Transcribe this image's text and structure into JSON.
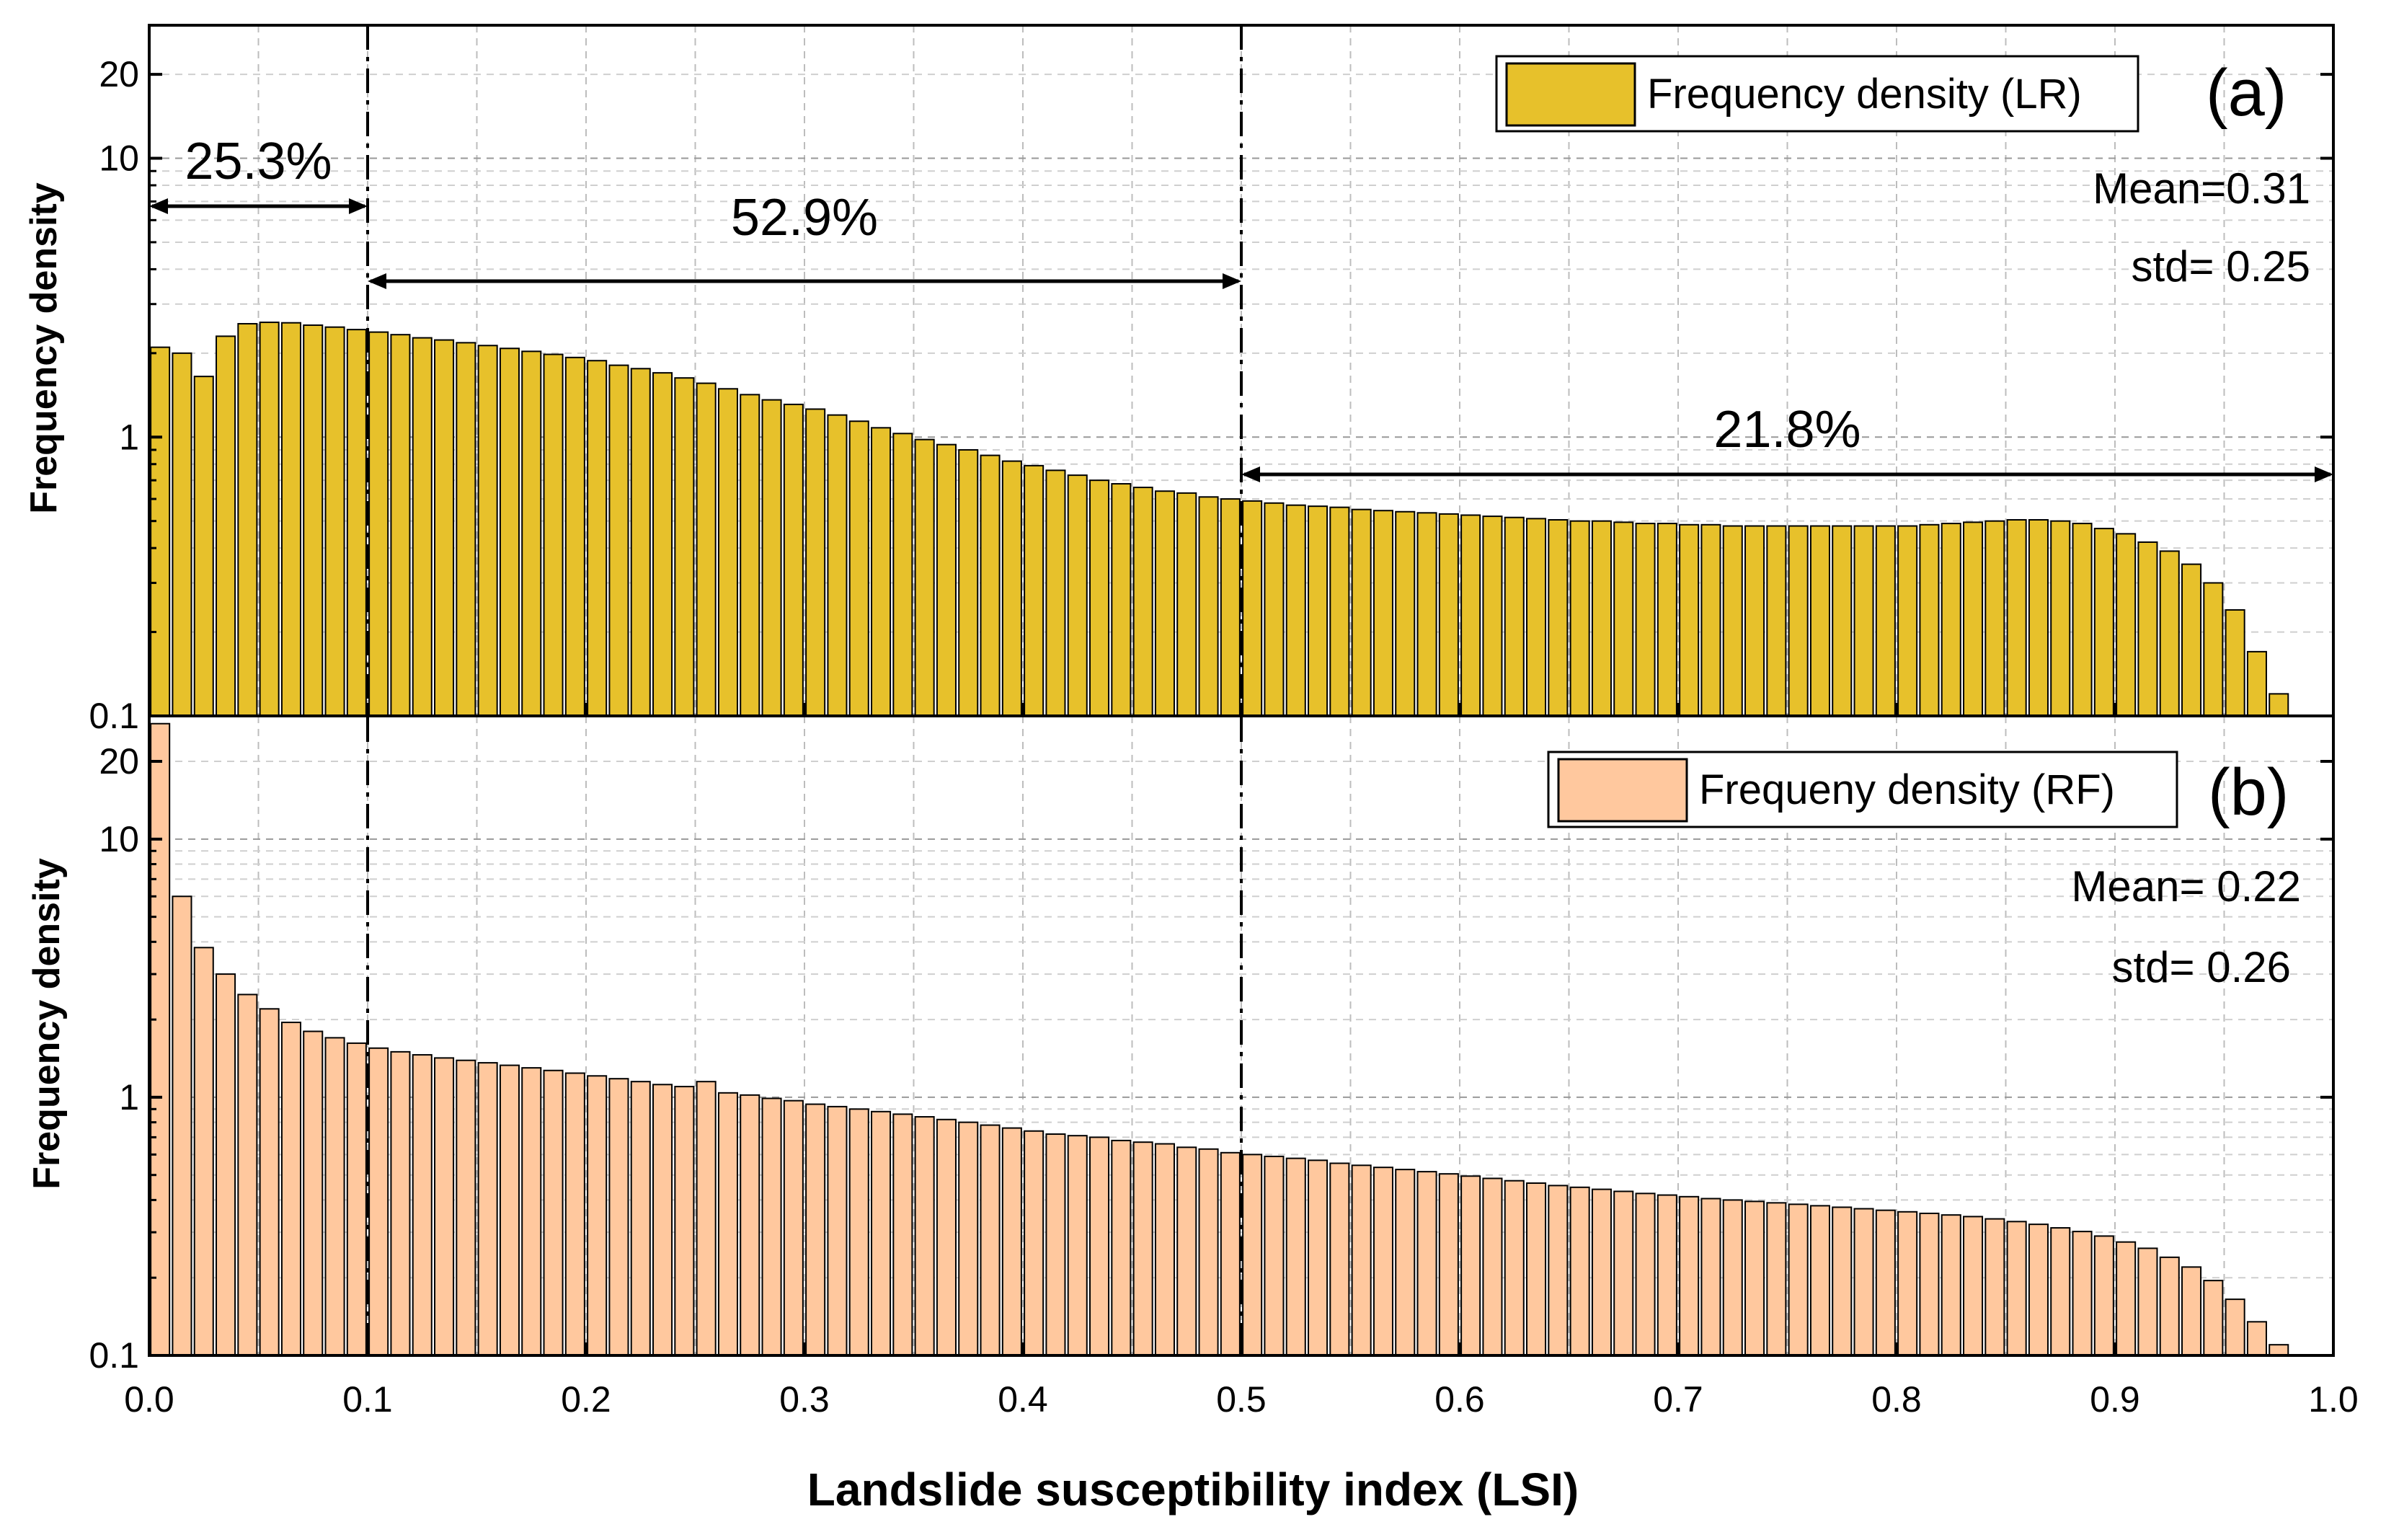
{
  "chart_data": {
    "type": "bar",
    "xlabel": "Landslide susceptibility index (LSI)",
    "xlim": [
      0.0,
      1.0
    ],
    "xticks": [
      "0.0",
      "0.1",
      "0.2",
      "0.3",
      "0.4",
      "0.5",
      "0.6",
      "0.7",
      "0.8",
      "0.9",
      "1.0"
    ],
    "yscale": "log",
    "grid": true,
    "dividers": [
      0.1,
      0.5
    ],
    "panels": [
      {
        "label": "(a)",
        "ylabel": "Frequency density",
        "ylim": [
          0.1,
          30
        ],
        "yticks": [
          "0.1",
          "1",
          "10",
          "20"
        ],
        "legend": "Frequency density (LR)",
        "legend_position": "top-right",
        "color": "#E7C12B",
        "mean_text": "Mean=0.31",
        "std_text": "std= 0.25",
        "bin_width": 0.01,
        "values": [
          2.1,
          2.0,
          1.65,
          2.3,
          2.55,
          2.58,
          2.57,
          2.52,
          2.48,
          2.43,
          2.38,
          2.33,
          2.27,
          2.23,
          2.18,
          2.13,
          2.08,
          2.03,
          1.98,
          1.93,
          1.88,
          1.81,
          1.76,
          1.7,
          1.63,
          1.56,
          1.49,
          1.42,
          1.36,
          1.31,
          1.26,
          1.2,
          1.14,
          1.08,
          1.03,
          0.98,
          0.94,
          0.9,
          0.86,
          0.82,
          0.79,
          0.76,
          0.73,
          0.7,
          0.68,
          0.66,
          0.64,
          0.63,
          0.61,
          0.6,
          0.59,
          0.58,
          0.57,
          0.565,
          0.56,
          0.55,
          0.545,
          0.54,
          0.535,
          0.53,
          0.525,
          0.52,
          0.515,
          0.51,
          0.505,
          0.5,
          0.5,
          0.495,
          0.49,
          0.49,
          0.485,
          0.485,
          0.48,
          0.48,
          0.48,
          0.48,
          0.48,
          0.48,
          0.48,
          0.48,
          0.48,
          0.485,
          0.49,
          0.495,
          0.5,
          0.505,
          0.505,
          0.5,
          0.49,
          0.47,
          0.45,
          0.42,
          0.39,
          0.35,
          0.3,
          0.24,
          0.17,
          0.12
        ],
        "annotations": [
          {
            "text": "25.3%",
            "from": 0.0,
            "to": 0.1
          },
          {
            "text": "52.9%",
            "from": 0.1,
            "to": 0.5
          },
          {
            "text": "21.8%",
            "from": 0.5,
            "to": 1.0
          }
        ]
      },
      {
        "label": "(b)",
        "ylabel": "Frequency density",
        "ylim": [
          0.1,
          30
        ],
        "yticks": [
          "0.1",
          "1",
          "10",
          "20"
        ],
        "legend": "Frequeny density (RF)",
        "legend_position": "top-right",
        "color": "#FFC89E",
        "mean_text": "Mean= 0.22",
        "std_text": "std= 0.26",
        "bin_width": 0.01,
        "values": [
          28,
          6.0,
          3.8,
          3.0,
          2.5,
          2.2,
          1.95,
          1.8,
          1.7,
          1.62,
          1.55,
          1.5,
          1.46,
          1.42,
          1.39,
          1.36,
          1.33,
          1.3,
          1.27,
          1.24,
          1.21,
          1.18,
          1.15,
          1.12,
          1.1,
          1.15,
          1.04,
          1.02,
          0.99,
          0.97,
          0.94,
          0.92,
          0.9,
          0.88,
          0.86,
          0.84,
          0.82,
          0.8,
          0.78,
          0.76,
          0.74,
          0.72,
          0.71,
          0.7,
          0.68,
          0.67,
          0.66,
          0.64,
          0.63,
          0.61,
          0.6,
          0.59,
          0.58,
          0.57,
          0.555,
          0.545,
          0.535,
          0.525,
          0.515,
          0.505,
          0.495,
          0.485,
          0.475,
          0.465,
          0.455,
          0.448,
          0.44,
          0.432,
          0.424,
          0.418,
          0.412,
          0.405,
          0.4,
          0.395,
          0.39,
          0.385,
          0.38,
          0.375,
          0.37,
          0.365,
          0.36,
          0.355,
          0.35,
          0.345,
          0.338,
          0.33,
          0.322,
          0.312,
          0.302,
          0.29,
          0.275,
          0.26,
          0.24,
          0.22,
          0.195,
          0.165,
          0.135,
          0.11
        ]
      }
    ]
  }
}
